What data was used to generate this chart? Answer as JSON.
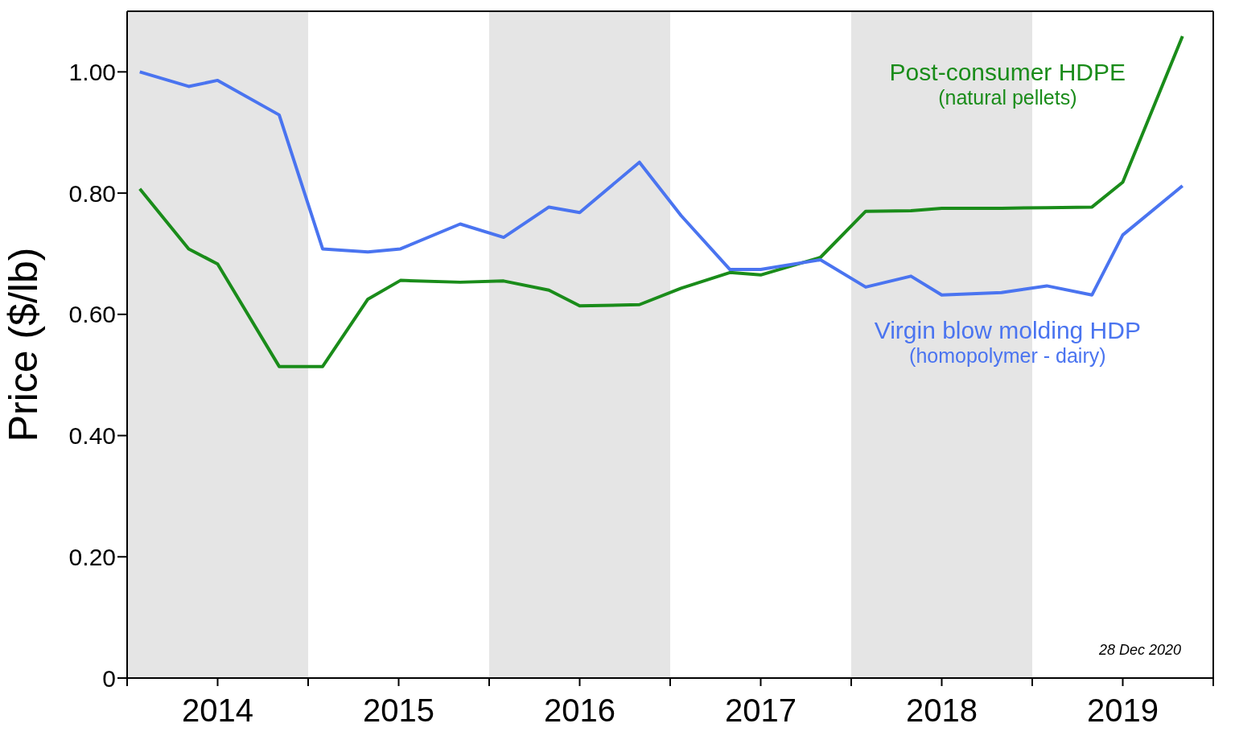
{
  "chart_data": {
    "type": "line",
    "ylabel": "Price ($/lb)",
    "xlim": [
      2014,
      2020
    ],
    "xticks": [
      {
        "value": 2014,
        "label": null
      },
      {
        "value": 2014.5,
        "label": "2014"
      },
      {
        "value": 2015,
        "label": null
      },
      {
        "value": 2015.5,
        "label": "2015"
      },
      {
        "value": 2016,
        "label": null
      },
      {
        "value": 2016.5,
        "label": "2016"
      },
      {
        "value": 2017,
        "label": null
      },
      {
        "value": 2017.5,
        "label": "2017"
      },
      {
        "value": 2018,
        "label": null
      },
      {
        "value": 2018.5,
        "label": "2018"
      },
      {
        "value": 2019,
        "label": null
      },
      {
        "value": 2019.5,
        "label": "2019"
      },
      {
        "value": 2020,
        "label": null
      }
    ],
    "ylim": [
      0,
      1.1
    ],
    "yticks": [
      {
        "value": 0,
        "label": "0"
      },
      {
        "value": 0.2,
        "label": "0.20"
      },
      {
        "value": 0.4,
        "label": "0.40"
      },
      {
        "value": 0.6,
        "label": "0.60"
      },
      {
        "value": 0.8,
        "label": "0.80"
      },
      {
        "value": 1.0,
        "label": "1.00"
      }
    ],
    "grid": false,
    "legend": false,
    "x": [
      2014.07,
      2014.34,
      2014.5,
      2014.84,
      2015.08,
      2015.33,
      2015.51,
      2015.84,
      2016.08,
      2016.33,
      2016.5,
      2016.83,
      2017.06,
      2017.33,
      2017.5,
      2017.83,
      2018.08,
      2018.33,
      2018.5,
      2018.83,
      2019.08,
      2019.33,
      2019.5,
      2019.83
    ],
    "series": [
      {
        "name": "Post-consumer HDPE\n(natural pellets)",
        "color": "#1a8c1a",
        "values": [
          0.807,
          0.708,
          0.683,
          0.514,
          0.514,
          0.625,
          0.656,
          0.653,
          0.655,
          0.64,
          0.614,
          0.616,
          0.643,
          0.669,
          0.665,
          0.694,
          0.77,
          0.771,
          0.775,
          0.775,
          0.776,
          0.777,
          0.818,
          1.059
        ]
      },
      {
        "name": "Virgin blow molding HDP\n(homopolymer - dairy)",
        "color": "#4a74f0",
        "values": [
          1.0,
          0.976,
          0.986,
          0.929,
          0.708,
          0.703,
          0.708,
          0.749,
          0.727,
          0.777,
          0.768,
          0.851,
          0.763,
          0.674,
          0.674,
          0.69,
          0.645,
          0.663,
          0.632,
          0.636,
          0.647,
          0.632,
          0.731,
          0.812
        ]
      }
    ],
    "bands": [
      {
        "axis": "x",
        "from": 2014,
        "to": 2015,
        "color": "#e5e5e5"
      },
      {
        "axis": "x",
        "from": 2016,
        "to": 2017,
        "color": "#e5e5e5"
      },
      {
        "axis": "x",
        "from": 2018,
        "to": 2019,
        "color": "#e5e5e5"
      }
    ],
    "annotations": [
      "28 Dec 2020"
    ]
  }
}
